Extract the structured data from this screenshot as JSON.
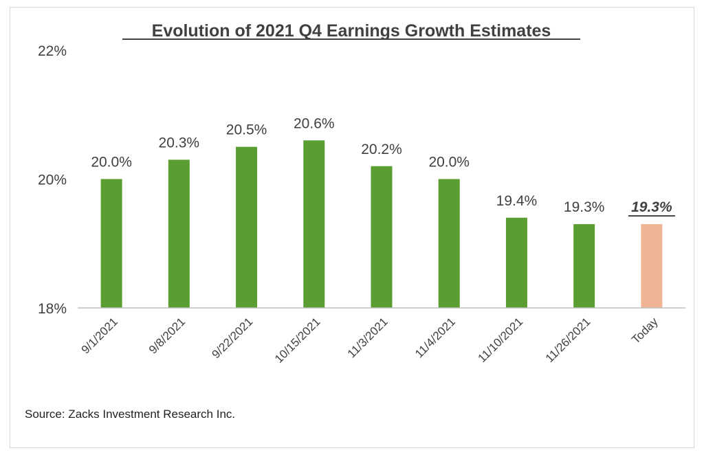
{
  "chart_data": {
    "type": "bar",
    "title": "Evolution of 2021 Q4 Earnings Growth Estimates",
    "categories": [
      "9/1/2021",
      "9/8/2021",
      "9/22/2021",
      "10/15/2021",
      "11/3/2021",
      "11/4/2021",
      "11/10/2021",
      "11/26/2021",
      "Today"
    ],
    "values": [
      20.0,
      20.3,
      20.5,
      20.6,
      20.2,
      20.0,
      19.4,
      19.3,
      19.3
    ],
    "data_labels": [
      "20.0%",
      "20.3%",
      "20.5%",
      "20.6%",
      "20.2%",
      "20.0%",
      "19.4%",
      "19.3%",
      "19.3%"
    ],
    "highlighted_index": 8,
    "ylim": [
      18,
      22
    ],
    "yticks": [
      18,
      20,
      22
    ],
    "ytick_labels": [
      "18%",
      "20%",
      "22%"
    ],
    "xlabel": "",
    "ylabel": "",
    "grid": false,
    "colors": {
      "bar": "#5a9e32",
      "highlight_bar": "#efb494",
      "text": "#404040",
      "axis": "#bfbfbf"
    }
  },
  "source": "Source: Zacks Investment Research Inc."
}
